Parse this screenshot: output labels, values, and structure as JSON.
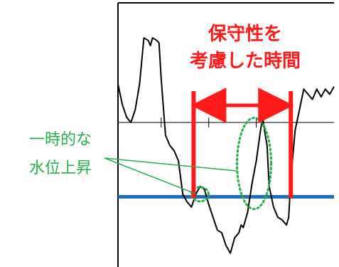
{
  "annotations": {
    "window_line1": "保守性を",
    "window_line2": "考慮した時間",
    "rise_line1": "一時的な",
    "rise_line2": "水位上昇"
  },
  "colors": {
    "series": "#000000",
    "threshold": "#1f6fb4",
    "window": "#ff1a1a",
    "highlight": "#22b04b",
    "axis": "#000000"
  },
  "chart_data": {
    "type": "line",
    "title": "",
    "xlabel": "",
    "ylabel": "",
    "grid": false,
    "legend": "none",
    "xlim": [
      0,
      100
    ],
    "ylim": [
      0,
      100
    ],
    "series": [
      {
        "x": [
          0,
          2,
          4,
          6,
          8,
          10,
          12,
          14,
          15,
          16,
          18,
          19,
          20,
          22,
          24,
          26,
          28,
          30,
          32,
          34,
          36,
          38,
          40,
          42,
          44,
          46,
          48,
          50,
          52,
          54,
          56,
          57,
          58,
          60,
          62,
          64,
          66,
          67,
          68,
          69,
          70,
          72,
          74,
          76,
          78,
          79,
          80,
          82,
          84,
          86,
          88,
          90,
          92,
          94,
          96,
          98,
          100
        ],
        "y": [
          70,
          62,
          57,
          55,
          60,
          70,
          88,
          87,
          85,
          88,
          87,
          86,
          72,
          50,
          46,
          44,
          40,
          27,
          24,
          22,
          27,
          30,
          29,
          23,
          18,
          13,
          12,
          7,
          4,
          10,
          12,
          15,
          14,
          20,
          31,
          40,
          52,
          57,
          51,
          46,
          30,
          22,
          18,
          17,
          15,
          18,
          33,
          52,
          60,
          68,
          66,
          64,
          68,
          65,
          68,
          66,
          69
        ]
      }
    ],
    "threshold_y": 26,
    "center_line_y": 55,
    "window_x": [
      35,
      80
    ],
    "highlight_regions": [
      {
        "cx": 38,
        "cy": 27
      },
      {
        "cx": 63,
        "cy": 39
      }
    ]
  }
}
